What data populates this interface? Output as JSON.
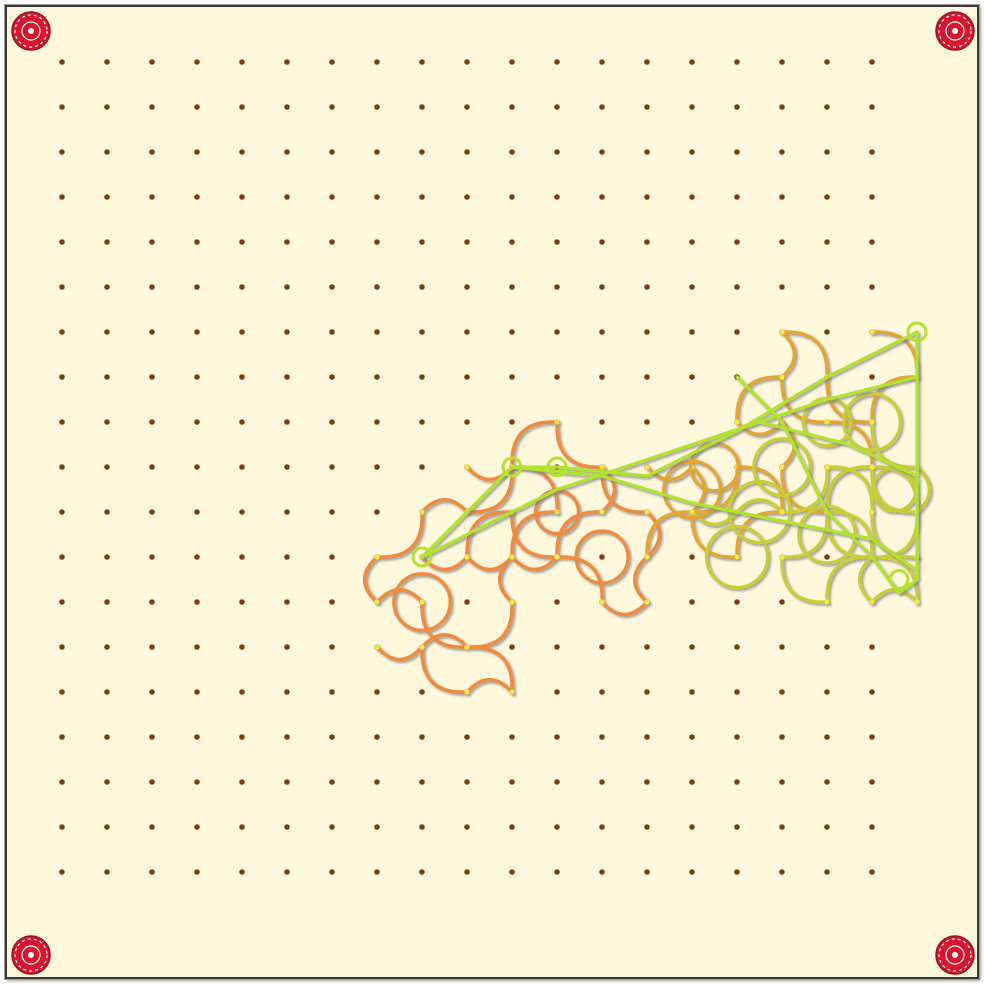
{
  "board": {
    "grid_cols": 20,
    "grid_rows": 20,
    "colors": {
      "background": "#fff8dc",
      "peg": "#7a3e12",
      "corner_token": "#d8142e",
      "corner_token_rim": "#ffffff",
      "path_orange": "#f08a3c",
      "path_amber": "#e4a531",
      "path_yellow": "#c8cf34",
      "path_lime": "#b2e32e",
      "shadow": "#8c8c8c",
      "node_fill": "#f7e94a"
    },
    "corner_tokens": [
      "corner-token-top-left",
      "corner-token-top-right",
      "corner-token-bottom-left",
      "corner-token-bottom-right"
    ],
    "knots": [
      {
        "points": [
          [
            9,
            12
          ],
          [
            10,
            12
          ],
          [
            11,
            11
          ],
          [
            12,
            12
          ],
          [
            13,
            11
          ],
          [
            13,
            10
          ],
          [
            12,
            9
          ],
          [
            11,
            10
          ],
          [
            10,
            11
          ],
          [
            9,
            11
          ],
          [
            8,
            12
          ],
          [
            8,
            13
          ]
        ],
        "color": "path_orange"
      },
      {
        "points": [
          [
            8,
            14
          ],
          [
            9,
            14
          ],
          [
            10,
            14
          ],
          [
            11,
            13
          ],
          [
            11,
            12
          ],
          [
            12,
            12
          ],
          [
            13,
            13
          ],
          [
            14,
            13
          ],
          [
            14,
            12
          ],
          [
            14,
            11
          ],
          [
            13,
            10
          ]
        ],
        "color": "path_orange"
      },
      {
        "points": [
          [
            9,
            14
          ],
          [
            10,
            15
          ],
          [
            11,
            15
          ],
          [
            10,
            14
          ],
          [
            9,
            13
          ],
          [
            8,
            13
          ],
          [
            8,
            12
          ]
        ],
        "color": "path_orange"
      },
      {
        "points": [
          [
            10,
            10
          ],
          [
            11,
            10
          ],
          [
            12,
            11
          ],
          [
            11,
            12
          ],
          [
            10,
            12
          ]
        ],
        "color": "path_orange"
      },
      {
        "points": [
          [
            14,
            10
          ],
          [
            15,
            10
          ],
          [
            15,
            11
          ],
          [
            16,
            12
          ],
          [
            17,
            11
          ],
          [
            16,
            10
          ],
          [
            15,
            11
          ],
          [
            14,
            12
          ]
        ],
        "color": "path_amber"
      },
      {
        "points": [
          [
            16,
            9
          ],
          [
            17,
            9
          ],
          [
            17,
            10
          ],
          [
            18,
            11
          ],
          [
            19,
            10
          ],
          [
            18,
            9
          ],
          [
            17,
            8
          ],
          [
            16,
            9
          ]
        ],
        "color": "path_amber"
      },
      {
        "points": [
          [
            17,
            8
          ],
          [
            17,
            7
          ],
          [
            18,
            8
          ],
          [
            19,
            9
          ],
          [
            20,
            8
          ],
          [
            19,
            7
          ]
        ],
        "color": "path_amber"
      },
      {
        "points": [
          [
            17,
            12
          ],
          [
            18,
            13
          ],
          [
            19,
            12
          ],
          [
            18,
            11
          ],
          [
            17,
            12
          ]
        ],
        "color": "path_yellow"
      },
      {
        "points": [
          [
            18,
            11
          ],
          [
            19,
            12
          ],
          [
            20,
            13
          ],
          [
            19,
            13
          ],
          [
            19,
            12
          ],
          [
            20,
            11
          ],
          [
            19,
            10
          ],
          [
            18,
            11
          ]
        ],
        "color": "path_yellow"
      },
      {
        "points": [
          [
            19,
            9
          ],
          [
            20,
            10
          ],
          [
            20,
            11
          ],
          [
            19,
            10
          ]
        ],
        "color": "path_yellow"
      },
      {
        "points": [
          [
            15,
            11
          ],
          [
            16,
            11
          ],
          [
            17,
            11
          ],
          [
            18,
            10
          ],
          [
            19,
            11
          ],
          [
            20,
            12
          ]
        ],
        "color": "path_yellow"
      }
    ],
    "lines": [
      {
        "points": [
          [
            9,
            12
          ],
          [
            11,
            10
          ],
          [
            12,
            10
          ],
          [
            14,
            10.2
          ],
          [
            16,
            9.2
          ],
          [
            18,
            8
          ],
          [
            20,
            7
          ]
        ],
        "color": "path_lime"
      },
      {
        "points": [
          [
            9,
            12
          ],
          [
            12,
            10.5
          ],
          [
            15,
            9.5
          ],
          [
            18,
            8.5
          ],
          [
            20,
            8
          ]
        ],
        "color": "path_lime"
      },
      {
        "points": [
          [
            11,
            10
          ],
          [
            13,
            10.2
          ],
          [
            15,
            10.8
          ],
          [
            17,
            11.2
          ],
          [
            19,
            11.6
          ],
          [
            20,
            12.3
          ]
        ],
        "color": "path_lime"
      },
      {
        "points": [
          [
            20,
            7
          ],
          [
            20,
            9
          ],
          [
            20,
            11
          ],
          [
            20,
            12.5
          ],
          [
            19.6,
            12.8
          ],
          [
            19,
            12
          ]
        ],
        "color": "path_lime"
      },
      {
        "points": [
          [
            16,
            8
          ],
          [
            17,
            9
          ],
          [
            18,
            11
          ],
          [
            19,
            12
          ]
        ],
        "color": "path_lime"
      },
      {
        "points": [
          [
            16.5,
            9
          ],
          [
            18.5,
            9.5
          ],
          [
            20,
            10.2
          ]
        ],
        "color": "path_lime"
      }
    ],
    "nodes": [
      {
        "point": [
          9,
          12
        ],
        "color": "path_lime"
      },
      {
        "point": [
          11,
          10
        ],
        "color": "path_lime"
      },
      {
        "point": [
          12,
          10
        ],
        "color": "path_lime"
      },
      {
        "point": [
          20,
          7
        ],
        "color": "path_lime"
      },
      {
        "point": [
          19.6,
          12.5
        ],
        "color": "path_lime"
      }
    ]
  }
}
